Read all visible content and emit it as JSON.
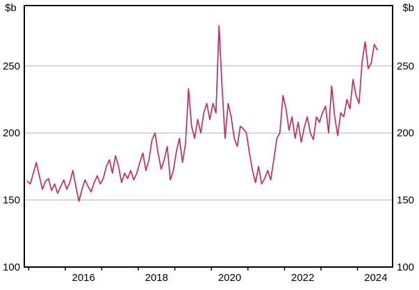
{
  "chart_data": {
    "type": "line",
    "title": "",
    "unit_left": "$b",
    "unit_right": "$b",
    "xlabel": "",
    "ylabel": "$b",
    "xlim": [
      2014.88,
      2024.96
    ],
    "ylim": [
      100,
      295
    ],
    "y_ticks": [
      100,
      150,
      200,
      250
    ],
    "grid_values": [
      150,
      200,
      250
    ],
    "x_year_ticks": [
      2015,
      2016,
      2017,
      2018,
      2019,
      2020,
      2021,
      2022,
      2023,
      2024
    ],
    "x_tick_labels": [
      2016,
      2018,
      2020,
      2022,
      2024
    ],
    "grid_on": true,
    "grid_color": "#b3b3b3",
    "frame_color": "#000000",
    "legend": "none",
    "series": [
      {
        "name": "monthly-series",
        "color": "#c92a5e",
        "freq": "monthly",
        "start_year": 2014,
        "start_month": 12,
        "values": [
          164,
          162,
          170,
          178,
          168,
          158,
          164,
          166,
          157,
          162,
          155,
          160,
          165,
          158,
          163,
          172,
          160,
          149,
          158,
          165,
          160,
          156,
          163,
          168,
          162,
          166,
          175,
          180,
          170,
          183,
          175,
          163,
          170,
          166,
          172,
          165,
          170,
          178,
          185,
          172,
          180,
          195,
          200,
          185,
          173,
          180,
          190,
          165,
          172,
          186,
          196,
          178,
          192,
          233,
          205,
          196,
          210,
          200,
          215,
          222,
          210,
          222,
          215,
          280,
          235,
          196,
          222,
          212,
          196,
          190,
          205,
          203,
          200,
          185,
          172,
          163,
          175,
          162,
          166,
          172,
          165,
          180,
          196,
          200,
          228,
          218,
          202,
          212,
          196,
          208,
          193,
          204,
          212,
          200,
          195,
          212,
          208,
          215,
          220,
          200,
          235,
          212,
          198,
          215,
          212,
          225,
          218,
          240,
          228,
          222,
          253,
          268,
          248,
          252,
          266,
          262
        ]
      }
    ]
  }
}
